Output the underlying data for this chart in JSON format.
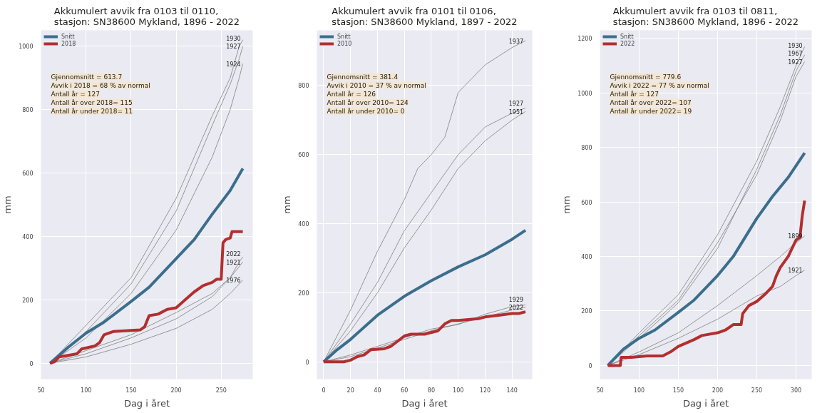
{
  "chart_data": [
    {
      "type": "line",
      "title": "Akkumulert avvik fra 0103 til 0110,\nstasjon: SN38600 Mykland, 1896 - 2022",
      "xlabel": "Dag i året",
      "ylabel": "mm",
      "xlim": [
        50,
        285
      ],
      "ylim": [
        -50,
        1050
      ],
      "xticks": [
        50,
        100,
        150,
        200,
        250
      ],
      "yticks": [
        0,
        200,
        400,
        600,
        800,
        1000
      ],
      "grid": true,
      "legend": "top left",
      "annotations": [
        "Gjennomsnitt = 613.7",
        "Avvik i 2018 = 68 % av normal",
        "Antall år = 127",
        "Antall år over 2018= 115",
        "Antall år under 2018= 11"
      ],
      "series": [
        {
          "name": "Snitt",
          "color": "#3b6e8c",
          "x": [
            60,
            80,
            100,
            120,
            150,
            170,
            200,
            220,
            240,
            260,
            274
          ],
          "values": [
            0,
            50,
            95,
            130,
            195,
            240,
            330,
            390,
            470,
            545,
            614
          ]
        },
        {
          "name": "2018",
          "color": "#b22f2f",
          "x": [
            60,
            65,
            70,
            80,
            90,
            95,
            110,
            115,
            120,
            125,
            130,
            160,
            165,
            170,
            180,
            190,
            200,
            210,
            220,
            230,
            240,
            245,
            250,
            252,
            255,
            260,
            262,
            270,
            274
          ],
          "values": [
            0,
            5,
            20,
            25,
            30,
            45,
            55,
            65,
            90,
            95,
            100,
            105,
            115,
            150,
            155,
            170,
            175,
            200,
            225,
            245,
            255,
            265,
            265,
            380,
            390,
            395,
            415,
            415,
            415
          ]
        },
        {
          "name": "1930",
          "color": "#808080",
          "x": [
            60,
            100,
            150,
            200,
            240,
            260,
            270,
            274
          ],
          "values": [
            0,
            120,
            270,
            520,
            780,
            900,
            1000,
            1020
          ]
        },
        {
          "name": "1927",
          "color": "#808080",
          "x": [
            60,
            100,
            150,
            200,
            240,
            260,
            270,
            274
          ],
          "values": [
            0,
            100,
            250,
            480,
            750,
            880,
            960,
            1000
          ]
        },
        {
          "name": "1924",
          "color": "#808080",
          "x": [
            60,
            100,
            150,
            200,
            240,
            260,
            270,
            274
          ],
          "values": [
            0,
            80,
            220,
            420,
            650,
            800,
            900,
            945
          ]
        },
        {
          "name": "2022",
          "color": "#808080",
          "x": [
            60,
            100,
            150,
            200,
            240,
            260,
            270,
            274
          ],
          "values": [
            0,
            30,
            80,
            140,
            210,
            270,
            320,
            335
          ]
        },
        {
          "name": "1921",
          "color": "#808080",
          "x": [
            60,
            100,
            150,
            200,
            240,
            260,
            270,
            274
          ],
          "values": [
            0,
            40,
            90,
            160,
            220,
            270,
            305,
            320
          ]
        },
        {
          "name": "1976",
          "color": "#808080",
          "x": [
            60,
            100,
            150,
            200,
            240,
            260,
            270,
            274
          ],
          "values": [
            0,
            20,
            60,
            110,
            170,
            220,
            250,
            262
          ]
        }
      ]
    },
    {
      "type": "line",
      "title": "Akkumulert avvik fra 0101 til 0106,\nstasjon: SN38600 Mykland, 1897 - 2022",
      "xlabel": "Dag i året",
      "ylabel": "mm",
      "xlim": [
        -5,
        155
      ],
      "ylim": [
        -50,
        960
      ],
      "xticks": [
        0,
        20,
        40,
        60,
        80,
        100,
        120,
        140
      ],
      "yticks": [
        0,
        200,
        400,
        600,
        800
      ],
      "grid": true,
      "legend": "top left",
      "annotations": [
        "Gjennomsnitt = 381.4",
        "Avvik i 2010 = 37 % av normal",
        "Antall år = 126",
        "Antall år over 2010= 124",
        "Antall år under 2010= 0"
      ],
      "series": [
        {
          "name": "Snitt",
          "color": "#3b6e8c",
          "x": [
            0,
            10,
            20,
            40,
            60,
            80,
            100,
            120,
            140,
            150
          ],
          "values": [
            0,
            35,
            65,
            135,
            190,
            235,
            275,
            310,
            355,
            381
          ]
        },
        {
          "name": "2010",
          "color": "#b22f2f",
          "x": [
            0,
            15,
            20,
            25,
            30,
            35,
            45,
            50,
            55,
            60,
            65,
            75,
            85,
            90,
            95,
            100,
            115,
            120,
            130,
            140,
            145,
            150
          ],
          "values": [
            0,
            0,
            5,
            15,
            20,
            35,
            38,
            45,
            60,
            75,
            80,
            80,
            90,
            110,
            120,
            120,
            125,
            130,
            135,
            140,
            140,
            145
          ]
        },
        {
          "name": "1937",
          "color": "#808080",
          "x": [
            0,
            20,
            40,
            60,
            70,
            80,
            90,
            100,
            120,
            140,
            150
          ],
          "values": [
            0,
            150,
            320,
            470,
            560,
            600,
            650,
            780,
            860,
            910,
            930
          ]
        },
        {
          "name": "1927",
          "color": "#808080",
          "x": [
            0,
            20,
            40,
            60,
            80,
            100,
            120,
            140,
            150
          ],
          "values": [
            0,
            110,
            230,
            380,
            490,
            600,
            680,
            720,
            735
          ]
        },
        {
          "name": "1951",
          "color": "#808080",
          "x": [
            0,
            20,
            40,
            60,
            80,
            100,
            120,
            140,
            150
          ],
          "values": [
            0,
            90,
            200,
            330,
            440,
            560,
            640,
            700,
            725
          ]
        },
        {
          "name": "1929",
          "color": "#808080",
          "x": [
            0,
            20,
            40,
            60,
            80,
            100,
            120,
            140,
            150
          ],
          "values": [
            0,
            20,
            45,
            70,
            95,
            108,
            138,
            160,
            165
          ]
        },
        {
          "name": "2022",
          "color": "#808080",
          "x": [
            0,
            20,
            40,
            60,
            80,
            100,
            120,
            140,
            150
          ],
          "values": [
            0,
            15,
            40,
            65,
            90,
            110,
            130,
            150,
            158
          ]
        }
      ]
    },
    {
      "type": "line",
      "title": "Akkumulert avvik fra 0103 til 0811,\nstasjon: SN38600 Mykland, 1896 - 2022",
      "xlabel": "Dag i året",
      "ylabel": "mm",
      "xlim": [
        50,
        320
      ],
      "ylim": [
        -50,
        1230
      ],
      "xticks": [
        50,
        100,
        150,
        200,
        250,
        300
      ],
      "yticks": [
        0,
        200,
        400,
        600,
        800,
        1000,
        1200
      ],
      "grid": true,
      "legend": "top left",
      "annotations": [
        "Gjennomsnitt = 779.6",
        "Avvik i 2022 = 77 % av normal",
        "Antall år = 127",
        "Antall år over 2022= 107",
        "Antall år under 2022= 19"
      ],
      "series": [
        {
          "name": "Snitt",
          "color": "#3b6e8c",
          "x": [
            60,
            80,
            100,
            120,
            150,
            170,
            200,
            220,
            250,
            270,
            290,
            311
          ],
          "values": [
            0,
            60,
            100,
            130,
            195,
            240,
            330,
            400,
            540,
            620,
            690,
            780
          ]
        },
        {
          "name": "2022",
          "color": "#b22f2f",
          "x": [
            60,
            76,
            77,
            90,
            110,
            130,
            140,
            150,
            170,
            180,
            200,
            210,
            220,
            230,
            232,
            240,
            250,
            260,
            270,
            275,
            280,
            290,
            300,
            305,
            308,
            311
          ],
          "values": [
            0,
            0,
            30,
            30,
            35,
            35,
            50,
            70,
            95,
            110,
            120,
            130,
            150,
            150,
            190,
            220,
            235,
            260,
            290,
            330,
            360,
            400,
            460,
            470,
            550,
            605
          ]
        },
        {
          "name": "1930",
          "color": "#808080",
          "x": [
            60,
            100,
            150,
            200,
            250,
            280,
            300,
            311
          ],
          "values": [
            0,
            120,
            260,
            480,
            750,
            950,
            1100,
            1170
          ]
        },
        {
          "name": "1967",
          "color": "#808080",
          "x": [
            60,
            100,
            150,
            200,
            250,
            280,
            300,
            311
          ],
          "values": [
            0,
            100,
            230,
            430,
            720,
            920,
            1080,
            1140
          ]
        },
        {
          "name": "1927",
          "color": "#808080",
          "x": [
            60,
            100,
            150,
            200,
            250,
            280,
            300,
            311
          ],
          "values": [
            0,
            110,
            240,
            450,
            700,
            900,
            1060,
            1115
          ]
        },
        {
          "name": "1899",
          "color": "#808080",
          "x": [
            60,
            100,
            150,
            200,
            250,
            280,
            300,
            311
          ],
          "values": [
            0,
            50,
            120,
            220,
            330,
            400,
            450,
            475
          ]
        },
        {
          "name": "1921",
          "color": "#808080",
          "x": [
            60,
            100,
            150,
            200,
            250,
            280,
            300,
            311
          ],
          "values": [
            0,
            40,
            100,
            170,
            255,
            290,
            330,
            350
          ]
        }
      ]
    }
  ]
}
